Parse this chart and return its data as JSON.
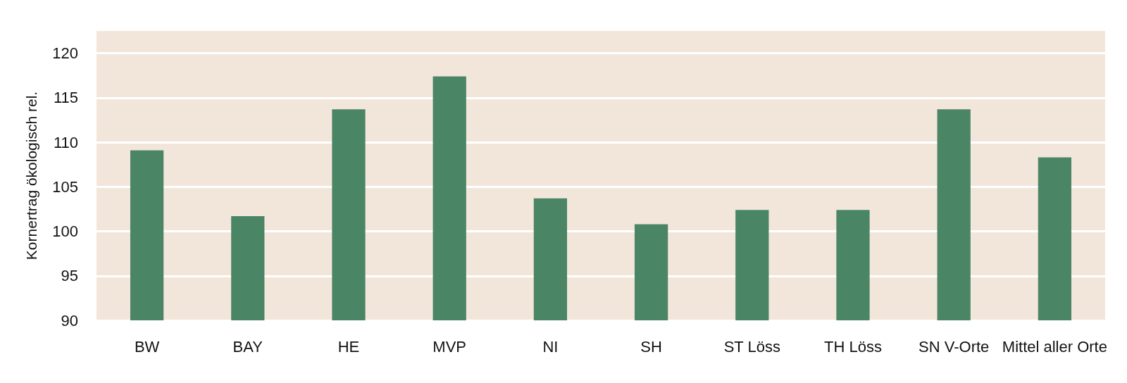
{
  "chart_data": {
    "type": "bar",
    "ylabel": "Kornertrag ökologisch rel.",
    "categories": [
      "BW",
      "BAY",
      "HE",
      "MVP",
      "NI",
      "SH",
      "ST Löss",
      "TH Löss",
      "SN V-Orte",
      "Mittel aller Orte"
    ],
    "values": [
      109.1,
      101.7,
      113.7,
      117.4,
      103.7,
      100.8,
      102.4,
      102.4,
      113.7,
      108.3
    ],
    "color": "#4a8565",
    "ylim": [
      90,
      122.5
    ],
    "yticks": [
      90,
      95,
      100,
      105,
      110,
      115,
      120
    ],
    "grid": "y"
  }
}
